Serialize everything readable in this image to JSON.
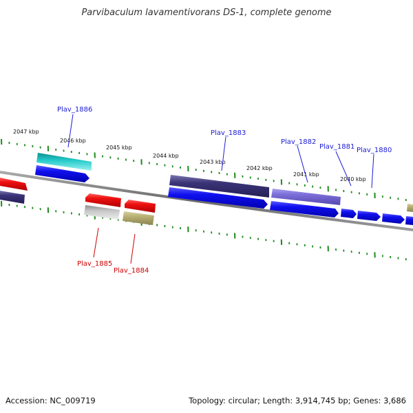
{
  "title": "Parvibaculum lavamentivorans DS-1, complete genome",
  "footer": {
    "accession": "Accession: NC_009719",
    "summary": "Topology: circular; Length: 3,914,745 bp; Genes: 3,686"
  },
  "kbp_labels": [
    "2047 kbp",
    "2046 kbp",
    "2045 kbp",
    "2044 kbp",
    "2043 kbp",
    "2042 kbp",
    "2041 kbp",
    "2040 kbp"
  ],
  "gene_labels_top": [
    "Plav_1886",
    "Plav_1883",
    "Plav_1882",
    "Plav_1881",
    "Plav_1880"
  ],
  "gene_labels_bottom": [
    "Plav_1885",
    "Plav_1884"
  ],
  "colors": {
    "blue": "#1010ee",
    "red": "#ee1111",
    "cyan": "#22c8c8",
    "dark_purple": "#3a3478",
    "lavender": "#7c70d8",
    "silver": "#bcbcbc",
    "khaki": "#b6ae72",
    "backbone": "#777777",
    "tick": "#1a8a1a"
  }
}
